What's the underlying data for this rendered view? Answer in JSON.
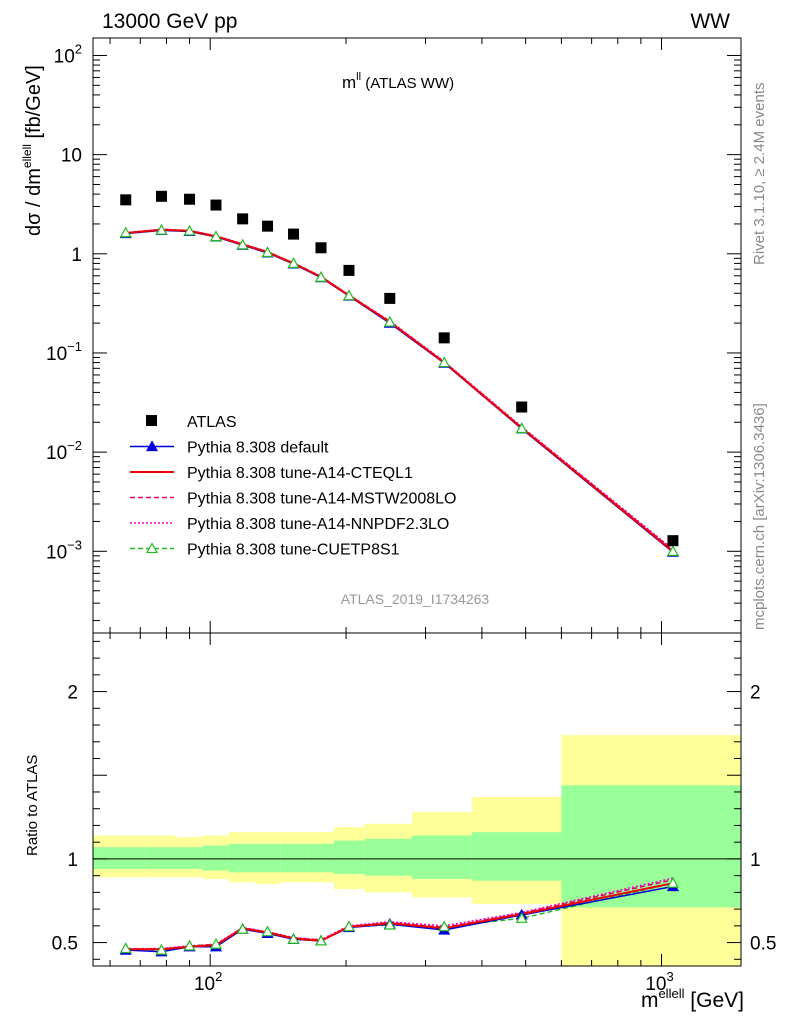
{
  "header": {
    "left": "13000 GeV pp",
    "right": "WW"
  },
  "plot_title": {
    "main": "m",
    "sup": "ll",
    "suffix": " (ATLAS WW)"
  },
  "side_text": {
    "rivet": "Rivet 3.1.10, ≥ 2.4M events",
    "mcplots": "mcplots.cern.ch [arXiv:1306.3436]"
  },
  "watermark": "ATLAS_2019_I1734263",
  "ylabel_main": {
    "pre": "dσ / dm",
    "sup": "ellell",
    "post": " [fb/GeV]"
  },
  "ylabel_ratio": "Ratio to ATLAS",
  "xlabel": {
    "pre": "m",
    "sup": "ellell",
    "post": " [GeV]"
  },
  "ticks": {
    "main_y": [
      {
        "base": "10",
        "exp": "2",
        "v": 100
      },
      {
        "base": "10",
        "exp": "",
        "v": 10
      },
      {
        "base": "1",
        "exp": "",
        "v": 1
      },
      {
        "base": "10",
        "exp": "−1",
        "v": 0.1
      },
      {
        "base": "10",
        "exp": "−2",
        "v": 0.01
      },
      {
        "base": "10",
        "exp": "−3",
        "v": 0.001
      }
    ],
    "ratio_y": [
      {
        "label": "2",
        "v": 2
      },
      {
        "label": "1",
        "v": 1
      },
      {
        "label": "0.5",
        "v": 0.5
      }
    ],
    "x": [
      {
        "base": "10",
        "exp": "2",
        "v": 100
      },
      {
        "base": "10",
        "exp": "3",
        "v": 1000
      }
    ]
  },
  "colors": {
    "atlas": "#000000",
    "default": "#0000dd",
    "cteql1": "#ee0000",
    "mstw": "#dd0066",
    "nnpdf": "#ee00cc",
    "cuetp8s1": "#22bb22",
    "band_inner": "#99ff99",
    "band_outer": "#ffff99"
  },
  "legend": [
    {
      "key": "atlas",
      "label": "ATLAS"
    },
    {
      "key": "default",
      "label": "Pythia 8.308 default"
    },
    {
      "key": "cteql1",
      "label": "Pythia 8.308 tune-A14-CTEQL1"
    },
    {
      "key": "mstw",
      "label": "Pythia 8.308 tune-A14-MSTW2008LO"
    },
    {
      "key": "nnpdf",
      "label": "Pythia 8.308 tune-A14-NNPDF2.3LO"
    },
    {
      "key": "cuetp8s1",
      "label": "Pythia 8.308 tune-CUETP8S1"
    }
  ],
  "chart_data": {
    "type": "scatter",
    "x_scale": "log",
    "y_scale": "log",
    "xlim": [
      55,
      1500
    ],
    "ylim_main": [
      0.00015,
      150
    ],
    "ylim_ratio": [
      0.36,
      2.35
    ],
    "x": [
      65,
      78,
      90,
      103,
      118,
      134,
      153,
      176,
      203,
      250,
      330,
      490,
      1060
    ],
    "bins": [
      [
        55,
        72
      ],
      [
        72,
        84
      ],
      [
        84,
        96
      ],
      [
        96,
        110
      ],
      [
        110,
        126
      ],
      [
        126,
        143
      ],
      [
        143,
        164
      ],
      [
        164,
        188
      ],
      [
        188,
        220
      ],
      [
        220,
        280
      ],
      [
        280,
        380
      ],
      [
        380,
        600
      ],
      [
        600,
        1500
      ]
    ],
    "atlas": [
      3.5,
      3.8,
      3.55,
      3.1,
      2.25,
      1.9,
      1.58,
      1.15,
      0.68,
      0.355,
      0.142,
      0.0285,
      0.00128
    ],
    "band_inner": [
      [
        0.94,
        1.07
      ],
      [
        0.94,
        1.07
      ],
      [
        0.94,
        1.07
      ],
      [
        0.93,
        1.08
      ],
      [
        0.92,
        1.09
      ],
      [
        0.92,
        1.09
      ],
      [
        0.92,
        1.09
      ],
      [
        0.92,
        1.09
      ],
      [
        0.91,
        1.11
      ],
      [
        0.9,
        1.12
      ],
      [
        0.88,
        1.14
      ],
      [
        0.87,
        1.16
      ],
      [
        0.71,
        1.44
      ]
    ],
    "band_outer": [
      [
        0.89,
        1.14
      ],
      [
        0.89,
        1.14
      ],
      [
        0.89,
        1.13
      ],
      [
        0.88,
        1.14
      ],
      [
        0.86,
        1.16
      ],
      [
        0.85,
        1.16
      ],
      [
        0.86,
        1.16
      ],
      [
        0.86,
        1.16
      ],
      [
        0.82,
        1.19
      ],
      [
        0.8,
        1.21
      ],
      [
        0.77,
        1.28
      ],
      [
        0.73,
        1.37
      ],
      [
        0.36,
        1.74
      ]
    ],
    "series": [
      {
        "key": "default",
        "name": "Pythia 8.308 default",
        "marker": "triangle-filled",
        "dash": "",
        "values": [
          1.6,
          1.72,
          1.68,
          1.48,
          1.22,
          1.02,
          0.79,
          0.575,
          0.375,
          0.2,
          0.079,
          0.0172,
          0.00098
        ],
        "ratio": [
          0.455,
          0.445,
          0.475,
          0.475,
          0.58,
          0.555,
          0.52,
          0.51,
          0.59,
          0.61,
          0.575,
          0.665,
          0.835
        ]
      },
      {
        "key": "cteql1",
        "name": "Pythia 8.308 tune-A14-CTEQL1",
        "marker": "",
        "dash": "",
        "values": [
          1.62,
          1.75,
          1.7,
          1.5,
          1.24,
          1.04,
          0.8,
          0.585,
          0.38,
          0.205,
          0.08,
          0.0175,
          0.001
        ],
        "ratio": [
          0.46,
          0.46,
          0.475,
          0.485,
          0.585,
          0.56,
          0.525,
          0.51,
          0.595,
          0.615,
          0.585,
          0.67,
          0.855
        ]
      },
      {
        "key": "mstw",
        "name": "Pythia 8.308 tune-A14-MSTW2008LO",
        "marker": "",
        "dash": "5,3",
        "values": [
          1.62,
          1.76,
          1.71,
          1.51,
          1.25,
          1.04,
          0.81,
          0.59,
          0.382,
          0.208,
          0.081,
          0.0178,
          0.00103
        ],
        "ratio": [
          0.46,
          0.462,
          0.478,
          0.488,
          0.588,
          0.562,
          0.528,
          0.515,
          0.595,
          0.62,
          0.59,
          0.675,
          0.875
        ]
      },
      {
        "key": "nnpdf",
        "name": "Pythia 8.308 tune-A14-NNPDF2.3LO",
        "marker": "",
        "dash": "2,2",
        "values": [
          1.63,
          1.77,
          1.72,
          1.52,
          1.26,
          1.05,
          0.81,
          0.592,
          0.385,
          0.21,
          0.082,
          0.018,
          0.00105
        ],
        "ratio": [
          0.462,
          0.465,
          0.48,
          0.49,
          0.59,
          0.565,
          0.53,
          0.518,
          0.6,
          0.625,
          0.6,
          0.68,
          0.885
        ]
      },
      {
        "key": "cuetp8s1",
        "name": "Pythia 8.308 tune-CUETP8S1",
        "marker": "triangle-open",
        "dash": "5,3",
        "values": [
          1.63,
          1.73,
          1.7,
          1.49,
          1.23,
          1.03,
          0.8,
          0.58,
          0.378,
          0.205,
          0.08,
          0.0173,
          0.001
        ],
        "ratio": [
          0.465,
          0.455,
          0.48,
          0.49,
          0.58,
          0.565,
          0.52,
          0.51,
          0.595,
          0.605,
          0.595,
          0.645,
          0.855
        ]
      }
    ]
  }
}
